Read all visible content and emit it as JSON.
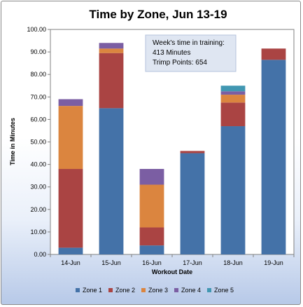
{
  "chart_data": {
    "type": "bar",
    "stacked": true,
    "title": "Time by Zone, Jun 13-19",
    "xlabel": "Workout Date",
    "ylabel": "Time in Minutes",
    "ylim": [
      0,
      100
    ],
    "ytick_step": 10,
    "ytick_labels": [
      "0.00",
      "10.00",
      "20.00",
      "30.00",
      "40.00",
      "50.00",
      "60.00",
      "70.00",
      "80.00",
      "90.00",
      "100.00"
    ],
    "categories": [
      "14-Jun",
      "15-Jun",
      "16-Jun",
      "17-Jun",
      "18-Jun",
      "19-Jun"
    ],
    "series": [
      {
        "name": "Zone 1",
        "color": "#4472a8",
        "values": [
          3,
          65,
          4,
          45,
          57,
          86.5
        ]
      },
      {
        "name": "Zone 2",
        "color": "#aa4443",
        "values": [
          35,
          24.5,
          8,
          1,
          10.5,
          5
        ]
      },
      {
        "name": "Zone 3",
        "color": "#db853f",
        "values": [
          28,
          2,
          19,
          0,
          3.5,
          0
        ]
      },
      {
        "name": "Zone 4",
        "color": "#7b5ea3",
        "values": [
          3,
          2.5,
          7,
          0,
          1.5,
          0
        ]
      },
      {
        "name": "Zone 5",
        "color": "#4197b2",
        "values": [
          0,
          0,
          0,
          0,
          2.5,
          0
        ]
      }
    ],
    "grid": false,
    "legend_position": "bottom",
    "annotation": {
      "lines": [
        "Week's time in training:",
        "413  Minutes",
        "Trimp Points:  654"
      ]
    }
  }
}
